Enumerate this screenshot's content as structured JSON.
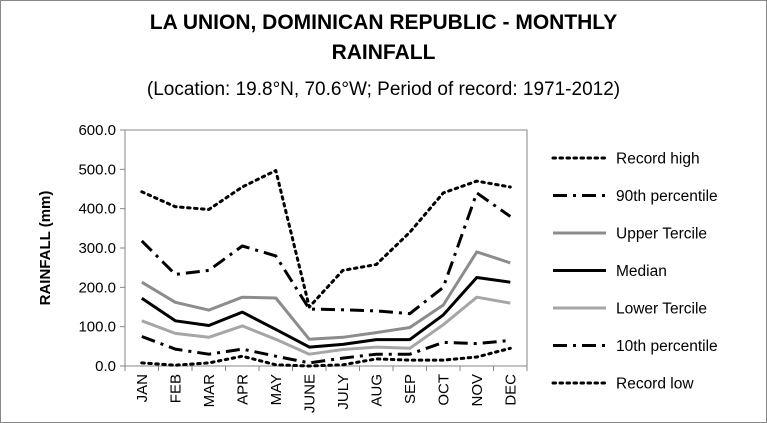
{
  "chart_data": {
    "type": "line",
    "title_line1": "LA UNION, DOMINICAN REPUBLIC - MONTHLY",
    "title_line2": "RAINFALL",
    "subtitle": "(Location: 19.8°N, 70.6°W; Period of record: 1971-2012)",
    "xlabel": "",
    "ylabel": "RAINFALL (mm)",
    "ylim": [
      0,
      600
    ],
    "yticks": [
      "0.0",
      "100.0",
      "200.0",
      "300.0",
      "400.0",
      "500.0",
      "600.0"
    ],
    "categories": [
      "JAN",
      "FEB",
      "MAR",
      "APR",
      "MAY",
      "JUNE",
      "JULY",
      "AUG",
      "SEP",
      "OCT",
      "NOV",
      "DEC"
    ],
    "grid": false,
    "legend_position": "right",
    "series": [
      {
        "name": "Record high",
        "style": "dotted",
        "color": "#000000",
        "width": 3,
        "values": [
          443,
          405,
          398,
          455,
          497,
          150,
          243,
          258,
          340,
          440,
          470,
          455
        ]
      },
      {
        "name": "90th percentile",
        "style": "dashdot",
        "color": "#000000",
        "width": 3,
        "values": [
          318,
          233,
          243,
          305,
          280,
          145,
          143,
          140,
          133,
          200,
          440,
          380
        ]
      },
      {
        "name": "Upper Tercile",
        "style": "solid",
        "color": "#8c8c8c",
        "width": 3,
        "values": [
          213,
          162,
          142,
          175,
          173,
          68,
          73,
          85,
          98,
          155,
          290,
          262
        ]
      },
      {
        "name": "Median",
        "style": "solid",
        "color": "#000000",
        "width": 3,
        "values": [
          172,
          115,
          103,
          137,
          93,
          48,
          55,
          67,
          67,
          130,
          225,
          213
        ]
      },
      {
        "name": "Lower Tercile",
        "style": "solid",
        "color": "#a6a6a6",
        "width": 3,
        "values": [
          115,
          83,
          73,
          102,
          68,
          30,
          42,
          48,
          45,
          105,
          175,
          160
        ]
      },
      {
        "name": "10th percentile",
        "style": "dashdot",
        "color": "#000000",
        "width": 3,
        "values": [
          75,
          43,
          30,
          43,
          25,
          8,
          20,
          30,
          30,
          60,
          57,
          65
        ]
      },
      {
        "name": "Record low",
        "style": "dotted",
        "color": "#000000",
        "width": 3,
        "values": [
          8,
          2,
          8,
          25,
          3,
          0,
          3,
          18,
          15,
          15,
          23,
          45
        ]
      }
    ]
  }
}
